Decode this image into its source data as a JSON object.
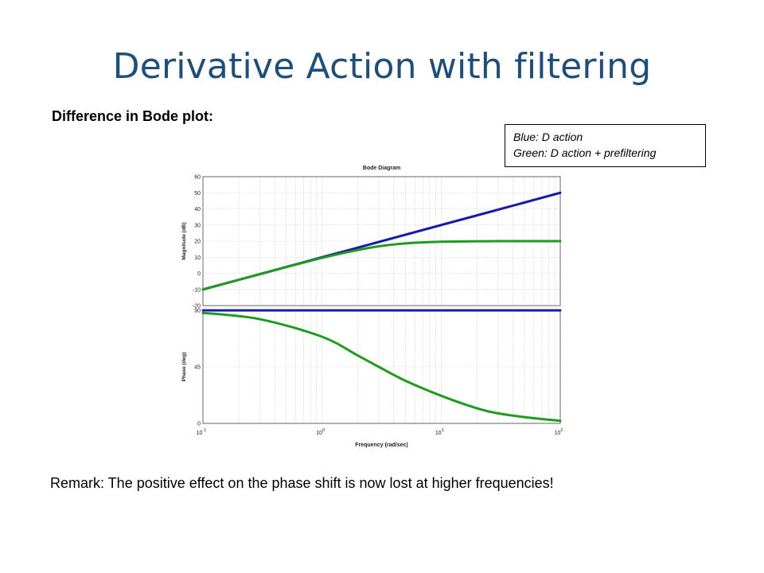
{
  "slide": {
    "title": "Derivative Action with filtering",
    "subtitle": "Difference in Bode plot:",
    "remark": "Remark: The positive effect on the phase shift is now lost at higher frequencies!"
  },
  "legend": {
    "line1": "Blue: D action",
    "line2": "Green: D action + prefiltering"
  },
  "chart_data": {
    "type": "line",
    "title": "Bode Diagram",
    "xlabel": "Frequency  (rad/sec)",
    "x_scale": "log",
    "xlim": [
      0.1,
      100
    ],
    "x_ticks": [
      {
        "value": 0.1,
        "base": "10",
        "exp": "-1"
      },
      {
        "value": 1,
        "base": "10",
        "exp": "0"
      },
      {
        "value": 10,
        "base": "10",
        "exp": "1"
      },
      {
        "value": 100,
        "base": "10",
        "exp": "2"
      }
    ],
    "grid": true,
    "colors": {
      "d_action": "#1a1aa8",
      "d_prefilter": "#1f9b1f"
    },
    "magnitude": {
      "ylabel": "Magnitude (dB)",
      "ylim": [
        -20,
        60
      ],
      "yticks": [
        -20,
        -10,
        0,
        10,
        20,
        30,
        40,
        50,
        60
      ],
      "series": [
        {
          "key": "d_action",
          "x": [
            0.1,
            0.3,
            1,
            3,
            10,
            30,
            100
          ],
          "y": [
            -10,
            -0.5,
            10,
            19.5,
            30,
            39.5,
            50
          ]
        },
        {
          "key": "d_prefilter",
          "x": [
            0.1,
            0.3,
            1,
            2,
            3,
            5,
            10,
            30,
            100
          ],
          "y": [
            -10,
            -0.5,
            9.6,
            14.5,
            16.8,
            18.6,
            19.6,
            20,
            20
          ]
        }
      ]
    },
    "phase": {
      "ylabel": "Phase (deg)",
      "ylim": [
        0,
        90
      ],
      "yticks": [
        0,
        45,
        90
      ],
      "series": [
        {
          "key": "d_action",
          "x": [
            0.1,
            1,
            10,
            100
          ],
          "y": [
            90,
            90,
            90,
            90
          ]
        },
        {
          "key": "d_prefilter",
          "x": [
            0.1,
            0.3,
            1,
            2,
            3,
            5,
            10,
            20,
            30,
            50,
            100
          ],
          "y": [
            88,
            83,
            69,
            54,
            45,
            34,
            22,
            12,
            8,
            5,
            2
          ]
        }
      ]
    }
  }
}
